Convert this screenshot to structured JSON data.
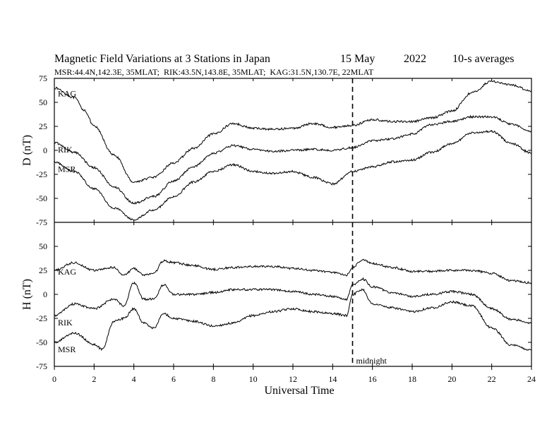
{
  "chart_data": {
    "type": "line",
    "title": "Magnetic Field Variations at 3 Stations in Japan",
    "date": "15 May",
    "year": "2022",
    "averaging": "10-s averages",
    "subtitle": "MSR:44.4N,142.3E, 35MLAT;  RIK:43.5N,143.8E, 35MLAT;  KAG:31.5N,130.7E, 22MLAT",
    "xlabel": "Universal Time",
    "xlim": [
      0,
      24
    ],
    "x_ticks": [
      "0",
      "2",
      "4",
      "6",
      "8",
      "10",
      "12",
      "14",
      "16",
      "18",
      "20",
      "22",
      "24"
    ],
    "annotation": {
      "text": "midnight",
      "x": 15
    },
    "panels": [
      {
        "id": "D",
        "ylabel": "D (nT)",
        "ylim": [
          -75,
          75
        ],
        "y_ticks": [
          "75",
          "50",
          "25",
          "0",
          "-25",
          "-50",
          "-75"
        ],
        "series": [
          {
            "name": "KAG",
            "x": [
              0,
              1,
              1.5,
              2,
              3,
              4,
              5,
              6,
              7,
              8,
              9,
              10,
              11,
              12,
              13,
              14,
              15,
              16,
              17,
              18,
              19,
              20,
              21,
              22,
              23,
              24
            ],
            "values": [
              65,
              55,
              42,
              25,
              -5,
              -33,
              -28,
              -13,
              2,
              17,
              28,
              23,
              22,
              23,
              28,
              24,
              26,
              32,
              30,
              30,
              34,
              41,
              60,
              72,
              68,
              62
            ]
          },
          {
            "name": "RIK",
            "x": [
              0,
              1,
              2,
              3,
              4,
              5,
              6,
              7,
              8,
              9,
              10,
              11,
              12,
              13,
              14,
              15,
              16,
              17,
              18,
              19,
              20,
              21,
              22,
              23,
              24
            ],
            "values": [
              8,
              -2,
              -18,
              -38,
              -55,
              -48,
              -32,
              -17,
              -3,
              5,
              1,
              -1,
              0,
              1,
              0,
              3,
              10,
              12,
              17,
              27,
              30,
              35,
              35,
              27,
              20
            ]
          },
          {
            "name": "MSR",
            "x": [
              0,
              1,
              2,
              3,
              4,
              5,
              6,
              7,
              8,
              9,
              10,
              11,
              12,
              13,
              14,
              15,
              16,
              17,
              18,
              19,
              20,
              21,
              22,
              23,
              24
            ],
            "values": [
              -12,
              -22,
              -40,
              -60,
              -72,
              -62,
              -48,
              -33,
              -22,
              -15,
              -22,
              -24,
              -22,
              -28,
              -35,
              -22,
              -17,
              -12,
              -10,
              -2,
              7,
              18,
              20,
              7,
              -3
            ]
          }
        ]
      },
      {
        "id": "H",
        "ylabel": "H (nT)",
        "ylim": [
          -75,
          75
        ],
        "y_ticks": [
          "50",
          "25",
          "0",
          "-25",
          "-50",
          "-75"
        ],
        "series": [
          {
            "name": "KAG",
            "x": [
              0,
              1,
              2,
              3,
              3.5,
              4,
              4.5,
              5,
              5.5,
              6,
              7,
              8,
              9,
              10,
              11,
              12,
              13,
              14,
              14.7,
              15,
              15.5,
              16,
              17,
              18,
              19,
              20,
              21,
              22,
              23,
              24
            ],
            "values": [
              25,
              33,
              25,
              28,
              20,
              27,
              20,
              22,
              35,
              33,
              30,
              26,
              28,
              29,
              29,
              27,
              25,
              23,
              20,
              28,
              36,
              32,
              28,
              24,
              24,
              25,
              25,
              22,
              14,
              12
            ]
          },
          {
            "name": "RIK",
            "x": [
              0,
              1,
              2,
              3,
              3.5,
              4,
              4.5,
              5,
              5.5,
              6,
              7,
              8,
              9,
              10,
              11,
              12,
              13,
              14,
              14.7,
              15,
              15.5,
              16,
              17,
              18,
              19,
              20,
              21,
              22,
              23,
              24
            ],
            "values": [
              -22,
              -10,
              -15,
              -5,
              -12,
              12,
              -5,
              -5,
              10,
              0,
              0,
              2,
              5,
              5,
              5,
              3,
              0,
              -2,
              -5,
              10,
              16,
              8,
              2,
              -2,
              0,
              3,
              0,
              -15,
              -26,
              -30
            ]
          },
          {
            "name": "MSR",
            "x": [
              0,
              1,
              2,
              2.4,
              3,
              3.5,
              4,
              4.5,
              5,
              5.5,
              6,
              7,
              8,
              9,
              10,
              11,
              12,
              13,
              14,
              14.7,
              15,
              15.5,
              16,
              17,
              18,
              19,
              20,
              21,
              22,
              23,
              24
            ],
            "values": [
              -50,
              -40,
              -52,
              -57,
              -28,
              -25,
              -15,
              -30,
              -35,
              -20,
              -25,
              -28,
              -33,
              -30,
              -22,
              -18,
              -15,
              -18,
              -20,
              -22,
              0,
              5,
              -10,
              -14,
              -18,
              -14,
              -8,
              -12,
              -35,
              -53,
              -58
            ]
          }
        ]
      }
    ]
  }
}
